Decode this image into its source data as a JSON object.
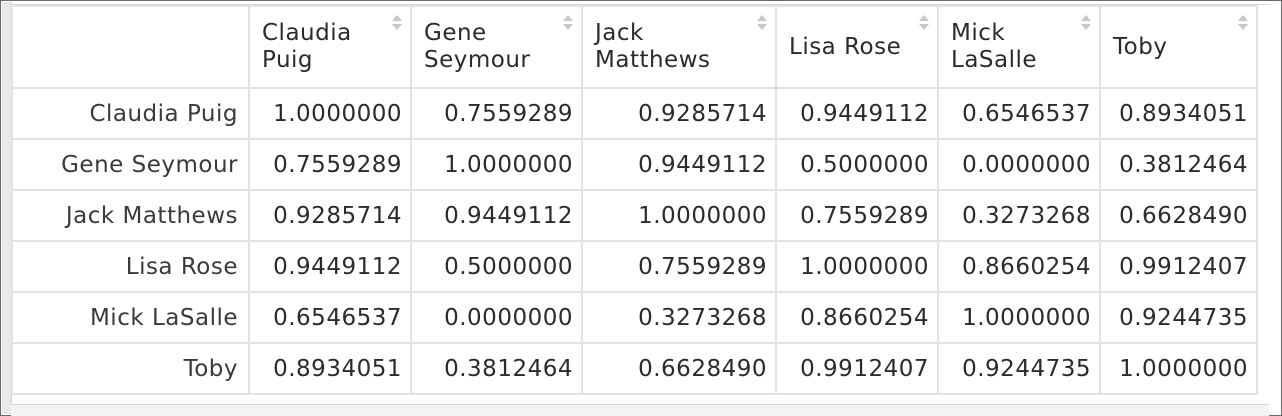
{
  "table": {
    "columns": [
      {
        "label": "Claudia Puig"
      },
      {
        "label": "Gene Seymour"
      },
      {
        "label": "Jack Matthews"
      },
      {
        "label": "Lisa Rose"
      },
      {
        "label": "Mick LaSalle"
      },
      {
        "label": "Toby"
      }
    ],
    "rows": [
      {
        "label": "Claudia Puig",
        "cells": [
          "1.0000000",
          "0.7559289",
          "0.9285714",
          "0.9449112",
          "0.6546537",
          "0.8934051"
        ]
      },
      {
        "label": "Gene Seymour",
        "cells": [
          "0.7559289",
          "1.0000000",
          "0.9449112",
          "0.5000000",
          "0.0000000",
          "0.3812464"
        ]
      },
      {
        "label": "Jack Matthews",
        "cells": [
          "0.9285714",
          "0.9449112",
          "1.0000000",
          "0.7559289",
          "0.3273268",
          "0.6628490"
        ]
      },
      {
        "label": "Lisa Rose",
        "cells": [
          "0.9449112",
          "0.5000000",
          "0.7559289",
          "1.0000000",
          "0.8660254",
          "0.9912407"
        ]
      },
      {
        "label": "Mick LaSalle",
        "cells": [
          "0.6546537",
          "0.0000000",
          "0.3273268",
          "0.8660254",
          "1.0000000",
          "0.9244735"
        ]
      },
      {
        "label": "Toby",
        "cells": [
          "0.8934051",
          "0.3812464",
          "0.6628490",
          "0.9912407",
          "0.9244735",
          "1.0000000"
        ]
      }
    ],
    "sort_icon": "sort-arrows-icon",
    "colors": {
      "border": "#e2e2e2",
      "text": "#2b2b2b",
      "icon": "#c7c7c7"
    }
  }
}
